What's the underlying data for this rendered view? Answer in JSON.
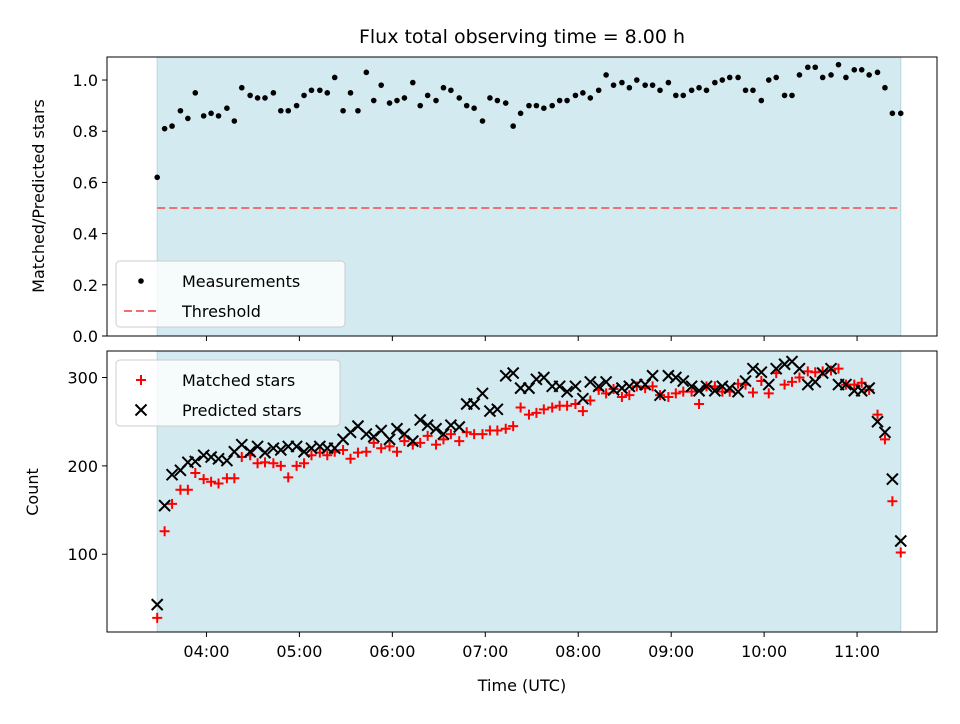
{
  "chart_data": {
    "title": "Flux total observing time = 8.00 h",
    "xlabel": "Time (UTC)",
    "x_tick_labels": [
      "04:00",
      "05:00",
      "06:00",
      "07:00",
      "08:00",
      "09:00",
      "10:00",
      "11:00"
    ],
    "x_ticks_hours": [
      4,
      5,
      6,
      7,
      8,
      9,
      10,
      11
    ],
    "xlim_hours": [
      2.93,
      11.86
    ],
    "shaded_interval_hours": [
      3.47,
      11.47
    ],
    "shaded_color": "#d3eaf0",
    "panels": [
      {
        "type": "scatter",
        "ylabel": "Matched/Predicted stars",
        "ylim": [
          0,
          1.09
        ],
        "y_ticks": [
          0.0,
          0.2,
          0.4,
          0.6,
          0.8,
          1.0
        ],
        "y_tick_labels": [
          "0.0",
          "0.2",
          "0.4",
          "0.6",
          "0.8",
          "1.0"
        ],
        "legend_position": "lower-left",
        "threshold": {
          "name": "Threshold",
          "value": 0.5,
          "color": "#f07070"
        },
        "series": [
          {
            "name": "Measurements",
            "color": "#000000",
            "marker": "dot",
            "x": [
              3.47,
              3.55,
              3.63,
              3.72,
              3.8,
              3.88,
              3.97,
              4.05,
              4.13,
              4.22,
              4.3,
              4.38,
              4.47,
              4.55,
              4.63,
              4.72,
              4.8,
              4.88,
              4.97,
              5.05,
              5.13,
              5.22,
              5.3,
              5.38,
              5.47,
              5.55,
              5.63,
              5.72,
              5.8,
              5.88,
              5.97,
              6.05,
              6.13,
              6.22,
              6.3,
              6.38,
              6.47,
              6.55,
              6.63,
              6.72,
              6.8,
              6.88,
              6.97,
              7.05,
              7.13,
              7.22,
              7.3,
              7.38,
              7.47,
              7.55,
              7.63,
              7.72,
              7.8,
              7.88,
              7.97,
              8.05,
              8.13,
              8.22,
              8.3,
              8.38,
              8.47,
              8.55,
              8.63,
              8.72,
              8.8,
              8.88,
              8.97,
              9.05,
              9.13,
              9.22,
              9.3,
              9.38,
              9.47,
              9.55,
              9.63,
              9.72,
              9.8,
              9.88,
              9.97,
              10.05,
              10.13,
              10.22,
              10.3,
              10.38,
              10.47,
              10.55,
              10.63,
              10.72,
              10.8,
              10.88,
              10.97,
              11.05,
              11.13,
              11.22,
              11.3,
              11.38,
              11.47
            ],
            "y": [
              0.62,
              0.81,
              0.82,
              0.88,
              0.85,
              0.95,
              0.86,
              0.87,
              0.86,
              0.89,
              0.84,
              0.97,
              0.94,
              0.93,
              0.93,
              0.95,
              0.88,
              0.88,
              0.9,
              0.94,
              0.96,
              0.96,
              0.95,
              1.01,
              0.88,
              0.95,
              0.88,
              1.03,
              0.92,
              0.98,
              0.91,
              0.92,
              0.93,
              0.99,
              0.9,
              0.94,
              0.92,
              0.97,
              0.96,
              0.93,
              0.9,
              0.89,
              0.84,
              0.93,
              0.92,
              0.91,
              0.82,
              0.87,
              0.9,
              0.9,
              0.89,
              0.9,
              0.92,
              0.92,
              0.94,
              0.95,
              0.93,
              0.96,
              1.02,
              0.98,
              0.99,
              0.97,
              1.0,
              0.98,
              0.98,
              0.96,
              0.99,
              0.94,
              0.94,
              0.96,
              0.97,
              0.96,
              0.99,
              1.0,
              1.01,
              1.01,
              0.96,
              0.96,
              0.92,
              1.0,
              1.01,
              0.94,
              0.94,
              1.02,
              1.05,
              1.05,
              1.01,
              1.02,
              1.06,
              1.01,
              1.04,
              1.04,
              1.02,
              1.03,
              0.97,
              0.87,
              0.87
            ]
          }
        ]
      },
      {
        "type": "scatter",
        "ylabel": "Count",
        "ylim": [
          12,
          330
        ],
        "y_ticks": [
          100,
          200,
          300
        ],
        "y_tick_labels": [
          "100",
          "200",
          "300"
        ],
        "legend_position": "upper-left",
        "series": [
          {
            "name": "Matched stars",
            "color": "#ff0000",
            "marker": "plus",
            "x": [
              3.47,
              3.55,
              3.63,
              3.72,
              3.8,
              3.88,
              3.97,
              4.05,
              4.13,
              4.22,
              4.3,
              4.38,
              4.47,
              4.55,
              4.63,
              4.72,
              4.8,
              4.88,
              4.97,
              5.05,
              5.13,
              5.22,
              5.3,
              5.38,
              5.47,
              5.55,
              5.63,
              5.72,
              5.8,
              5.88,
              5.97,
              6.05,
              6.13,
              6.22,
              6.3,
              6.38,
              6.47,
              6.55,
              6.63,
              6.72,
              6.8,
              6.88,
              6.97,
              7.05,
              7.13,
              7.22,
              7.3,
              7.38,
              7.47,
              7.55,
              7.63,
              7.72,
              7.8,
              7.88,
              7.97,
              8.05,
              8.13,
              8.22,
              8.3,
              8.38,
              8.47,
              8.55,
              8.63,
              8.72,
              8.8,
              8.88,
              8.97,
              9.05,
              9.13,
              9.22,
              9.3,
              9.38,
              9.47,
              9.55,
              9.63,
              9.72,
              9.8,
              9.88,
              9.97,
              10.05,
              10.13,
              10.22,
              10.3,
              10.38,
              10.47,
              10.55,
              10.63,
              10.72,
              10.8,
              10.88,
              10.97,
              11.05,
              11.13,
              11.22,
              11.3,
              11.38,
              11.47
            ],
            "y": [
              28,
              126,
              157,
              173,
              173,
              192,
              185,
              182,
              180,
              186,
              186,
              210,
              212,
              203,
              204,
              203,
              200,
              187,
              200,
              203,
              212,
              215,
              212,
              216,
              218,
              208,
              215,
              216,
              226,
              220,
              222,
              216,
              228,
              224,
              226,
              234,
              224,
              230,
              236,
              228,
              238,
              236,
              236,
              240,
              240,
              242,
              245,
              266,
              258,
              260,
              264,
              266,
              268,
              268,
              270,
              262,
              274,
              286,
              282,
              287,
              278,
              280,
              290,
              288,
              290,
              280,
              278,
              282,
              284,
              284,
              270,
              290,
              290,
              284,
              284,
              293,
              292,
              283,
              296,
              282,
              305,
              292,
              295,
              300,
              307,
              306,
              307,
              308,
              310,
              292,
              292,
              294,
              286,
              258,
              230,
              160,
              102
            ]
          },
          {
            "name": "Predicted stars",
            "color": "#000000",
            "marker": "x",
            "x": [
              3.47,
              3.55,
              3.63,
              3.72,
              3.8,
              3.88,
              3.97,
              4.05,
              4.13,
              4.22,
              4.3,
              4.38,
              4.47,
              4.55,
              4.63,
              4.72,
              4.8,
              4.88,
              4.97,
              5.05,
              5.13,
              5.22,
              5.3,
              5.38,
              5.47,
              5.55,
              5.63,
              5.72,
              5.8,
              5.88,
              5.97,
              6.05,
              6.13,
              6.22,
              6.3,
              6.38,
              6.47,
              6.55,
              6.63,
              6.72,
              6.8,
              6.88,
              6.97,
              7.05,
              7.13,
              7.22,
              7.3,
              7.38,
              7.47,
              7.55,
              7.63,
              7.72,
              7.8,
              7.88,
              7.97,
              8.05,
              8.13,
              8.22,
              8.3,
              8.38,
              8.47,
              8.55,
              8.63,
              8.72,
              8.8,
              8.88,
              8.97,
              9.05,
              9.13,
              9.22,
              9.3,
              9.38,
              9.47,
              9.55,
              9.63,
              9.72,
              9.8,
              9.88,
              9.97,
              10.05,
              10.13,
              10.22,
              10.3,
              10.38,
              10.47,
              10.55,
              10.63,
              10.72,
              10.8,
              10.88,
              10.97,
              11.05,
              11.13,
              11.22,
              11.3,
              11.38,
              11.47
            ],
            "y": [
              43,
              155,
              190,
              195,
              204,
              205,
              212,
              210,
              208,
              206,
              216,
              224,
              216,
              222,
              215,
              220,
              218,
              222,
              222,
              216,
              220,
              222,
              220,
              220,
              230,
              238,
              245,
              236,
              233,
              240,
              230,
              242,
              236,
              228,
              252,
              246,
              242,
              236,
              246,
              244,
              270,
              270,
              282,
              262,
              264,
              302,
              305,
              288,
              288,
              298,
              300,
              290,
              290,
              284,
              290,
              276,
              295,
              290,
              295,
              286,
              288,
              290,
              292,
              292,
              302,
              280,
              302,
              300,
              296,
              290,
              285,
              290,
              285,
              290,
              288,
              284,
              296,
              310,
              306,
              292,
              310,
              315,
              318,
              310,
              292,
              295,
              305,
              310,
              292,
              292,
              285,
              285,
              288,
              250,
              238,
              185,
              115
            ]
          }
        ]
      }
    ]
  }
}
